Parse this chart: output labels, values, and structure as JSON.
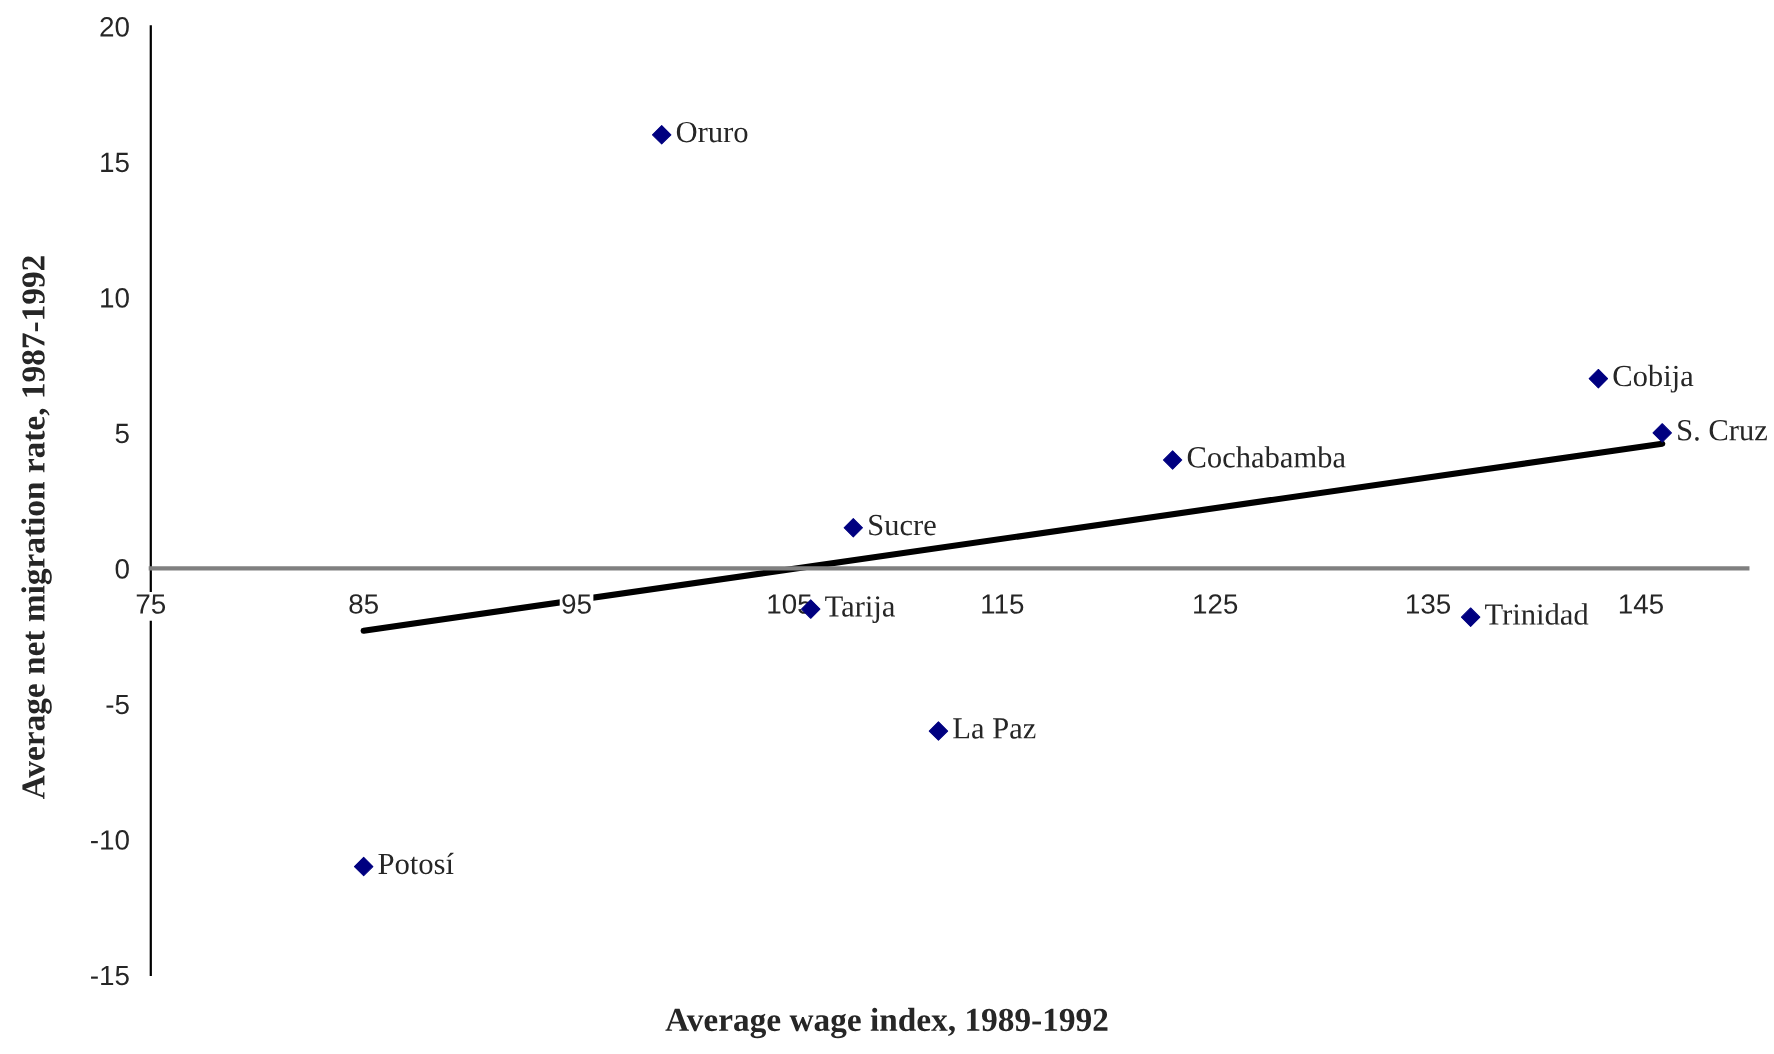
{
  "chart_data": {
    "type": "scatter",
    "xlabel": "Average wage index, 1989-1992",
    "ylabel": "Average net migration rate, 1987-1992",
    "xlim": [
      75,
      150
    ],
    "xticks": [
      75,
      85,
      95,
      105,
      115,
      125,
      135,
      145
    ],
    "ylim": [
      -15,
      20
    ],
    "yticks": [
      -15,
      -10,
      -5,
      0,
      5,
      10,
      15,
      20
    ],
    "grid": false,
    "legend": false,
    "series": [
      {
        "marker": "diamond",
        "color": "#000080",
        "x": [
          99,
          143,
          146,
          123,
          108,
          106,
          137,
          112,
          85
        ],
        "values": [
          16,
          7,
          5,
          4,
          1.5,
          -1.5,
          -1.8,
          -6,
          -11
        ]
      },
      {
        "type": "line",
        "color": "#000000",
        "x": [
          85,
          146
        ],
        "values": [
          -2.3,
          4.6
        ],
        "line_style": "solid"
      }
    ],
    "annotations": [
      {
        "text": "Oruro",
        "x": 99,
        "y": 16
      },
      {
        "text": "Cobija",
        "x": 143,
        "y": 7
      },
      {
        "text": "S. Cruz",
        "x": 146,
        "y": 5
      },
      {
        "text": "Cochabamba",
        "x": 123,
        "y": 4
      },
      {
        "text": "Sucre",
        "x": 108,
        "y": 1.5
      },
      {
        "text": "Tarija",
        "x": 106,
        "y": -1.5
      },
      {
        "text": "Trinidad",
        "x": 137,
        "y": -1.8
      },
      {
        "text": "La Paz",
        "x": 112,
        "y": -6
      },
      {
        "text": "Potosí",
        "x": 85,
        "y": -11
      }
    ]
  }
}
